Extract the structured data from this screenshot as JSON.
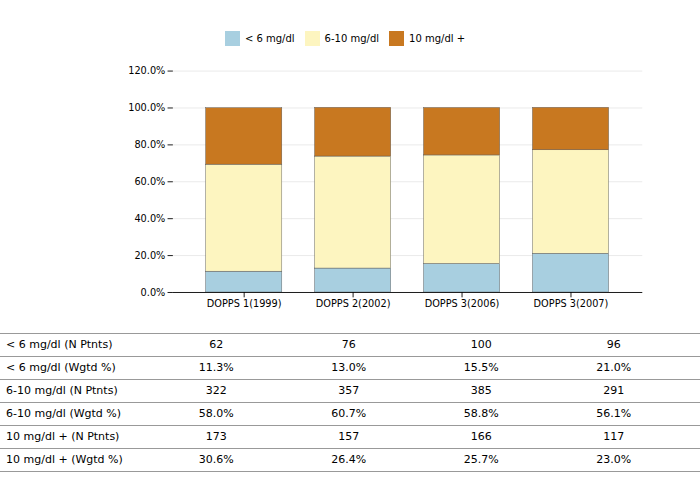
{
  "chart_data": {
    "type": "bar",
    "stacked": true,
    "grid": true,
    "legend": "top",
    "categories": [
      "DOPPS 1(1999)",
      "DOPPS 2(2002)",
      "DOPPS 3(2006)",
      "DOPPS 3(2007)"
    ],
    "series": [
      {
        "name": "< 6 mg/dl",
        "color": "#a8cfe0",
        "values": [
          11.3,
          13.0,
          15.5,
          21.0
        ]
      },
      {
        "name": "6-10 mg/dl",
        "color": "#fdf5c0",
        "values": [
          58.0,
          60.7,
          58.8,
          56.1
        ]
      },
      {
        "name": "10 mg/dl +",
        "color": "#c87820",
        "values": [
          30.6,
          26.4,
          25.7,
          23.0
        ]
      }
    ],
    "ylim": [
      0,
      120
    ],
    "yticks": [
      {
        "value": 0,
        "label": "0.0%"
      },
      {
        "value": 20,
        "label": "20.0%"
      },
      {
        "value": 40,
        "label": "40.0%"
      },
      {
        "value": 60,
        "label": "60.0%"
      },
      {
        "value": 80,
        "label": "80.0%"
      },
      {
        "value": 100,
        "label": "100.0%"
      },
      {
        "value": 120,
        "label": "120.0%"
      }
    ],
    "table": [
      {
        "label": "< 6 mg/dl  (N Ptnts)",
        "values": [
          "62",
          "76",
          "100",
          "96"
        ]
      },
      {
        "label": "< 6 mg/dl  (Wgtd %)",
        "values": [
          "11.3%",
          "13.0%",
          "15.5%",
          "21.0%"
        ]
      },
      {
        "label": "6-10 mg/dl (N Ptnts)",
        "values": [
          "322",
          "357",
          "385",
          "291"
        ]
      },
      {
        "label": "6-10 mg/dl (Wgtd %)",
        "values": [
          "58.0%",
          "60.7%",
          "58.8%",
          "56.1%"
        ]
      },
      {
        "label": "10 mg/dl + (N Ptnts)",
        "values": [
          "173",
          "157",
          "166",
          "117"
        ]
      },
      {
        "label": "10 mg/dl + (Wgtd %)",
        "values": [
          "30.6%",
          "26.4%",
          "25.7%",
          "23.0%"
        ]
      }
    ]
  }
}
